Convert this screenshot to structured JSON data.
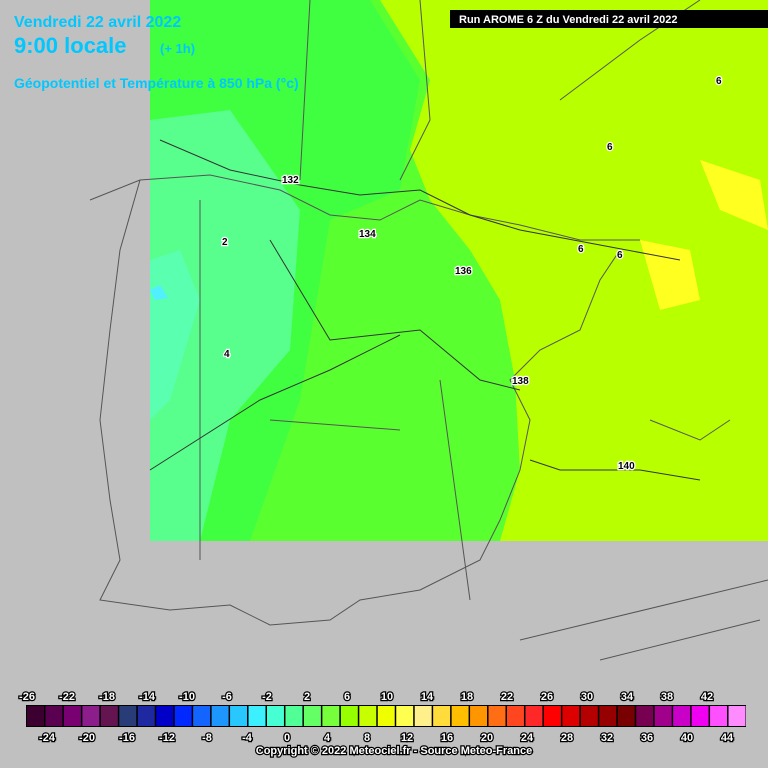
{
  "header": {
    "date": "Vendredi 22 avril 2022",
    "time": "9:00 locale",
    "lead": "(+ 1h)",
    "field": "Géopotentiel et Température à 850 hPa (°c)"
  },
  "run": "Run AROME 6 Z du Vendredi 22 avril 2022",
  "contours": [
    "132",
    "134",
    "136",
    "138",
    "140",
    "2",
    "4",
    "6",
    "6",
    "6",
    "6"
  ],
  "scale": {
    "top_labels": [
      -26,
      -22,
      -18,
      -14,
      -10,
      -6,
      -2,
      2,
      6,
      10,
      14,
      18,
      22,
      26,
      30,
      34,
      38,
      42
    ],
    "bottom_labels": [
      -24,
      -20,
      -16,
      -12,
      -8,
      -4,
      0,
      4,
      8,
      12,
      16,
      20,
      24,
      28,
      32,
      36,
      40,
      44
    ],
    "colors": [
      "#3c0030",
      "#5a0050",
      "#780070",
      "#8c1e8c",
      "#641450",
      "#283c78",
      "#1e28a0",
      "#0000c8",
      "#0028ff",
      "#1464ff",
      "#1e96ff",
      "#28c8ff",
      "#3cf0ff",
      "#46ffd2",
      "#50ff96",
      "#64ff64",
      "#78ff3c",
      "#96ff00",
      "#c8ff00",
      "#f0ff00",
      "#ffff50",
      "#fff08c",
      "#ffdc3c",
      "#ffbe00",
      "#ff9600",
      "#ff6e14",
      "#ff461e",
      "#ff2828",
      "#ff0000",
      "#dc0000",
      "#b40000",
      "#960000",
      "#780000",
      "#780050",
      "#a0008c",
      "#c800c8",
      "#f000f0",
      "#ff50ff",
      "#ff8cff"
    ]
  },
  "copyright": "Copyright © 2022 Meteociel.fr - Source Meteo-France"
}
